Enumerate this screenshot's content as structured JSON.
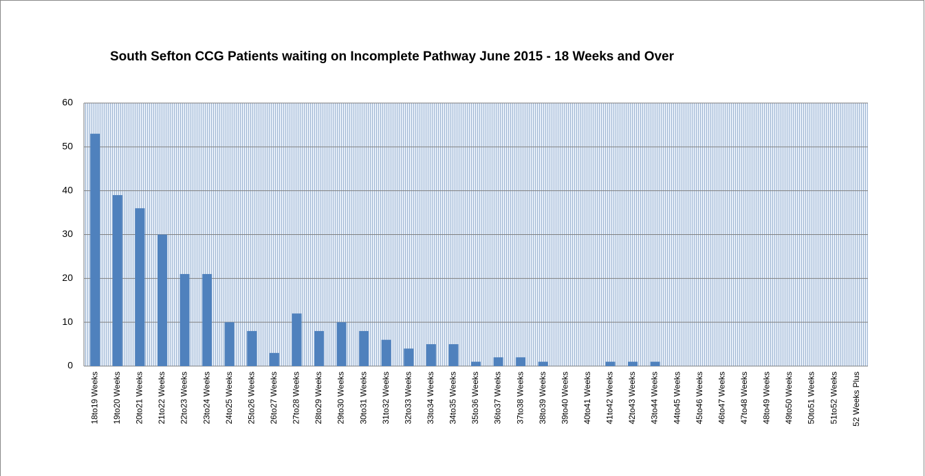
{
  "chart_data": {
    "type": "bar",
    "title": "South Sefton CCG Patients waiting on Incomplete Pathway June 2015 - 18 Weeks and Over",
    "categories": [
      "18to19 Weeks",
      "19to20 Weeks",
      "20to21 Weeks",
      "21to22 Weeks",
      "22to23 Weeks",
      "23to24 Weeks",
      "24to25 Weeks",
      "25to26 Weeks",
      "26to27 Weeks",
      "27to28 Weeks",
      "28to29 Weeks",
      "29to30 Weeks",
      "30to31 Weeks",
      "31to32 Weeks",
      "32to33 Weeks",
      "33to34 Weeks",
      "34to35 Weeks",
      "35to36 Weeks",
      "36to37 Weeks",
      "37to38 Weeks",
      "38to39 Weeks",
      "39to40 Weeks",
      "40to41 Weeks",
      "41to42 Weeks",
      "42to43 Weeks",
      "43to44 Weeks",
      "44to45 Weeks",
      "45to46 Weeks",
      "46to47 Weeks",
      "47to48 Weeks",
      "48to49 Weeks",
      "49to50 Weeks",
      "50to51 Weeks",
      "51to52 Weeks",
      "52 Weeks Plus"
    ],
    "values": [
      53,
      39,
      36,
      30,
      21,
      21,
      10,
      8,
      3,
      12,
      8,
      10,
      8,
      6,
      4,
      5,
      5,
      1,
      2,
      2,
      1,
      0,
      0,
      1,
      1,
      1,
      0,
      0,
      0,
      0,
      0,
      0,
      0,
      0,
      0
    ],
    "color": "#4f81bd",
    "ylim": [
      0,
      60
    ],
    "yticks": [
      0,
      10,
      20,
      30,
      40,
      50,
      60
    ],
    "grid": true
  }
}
